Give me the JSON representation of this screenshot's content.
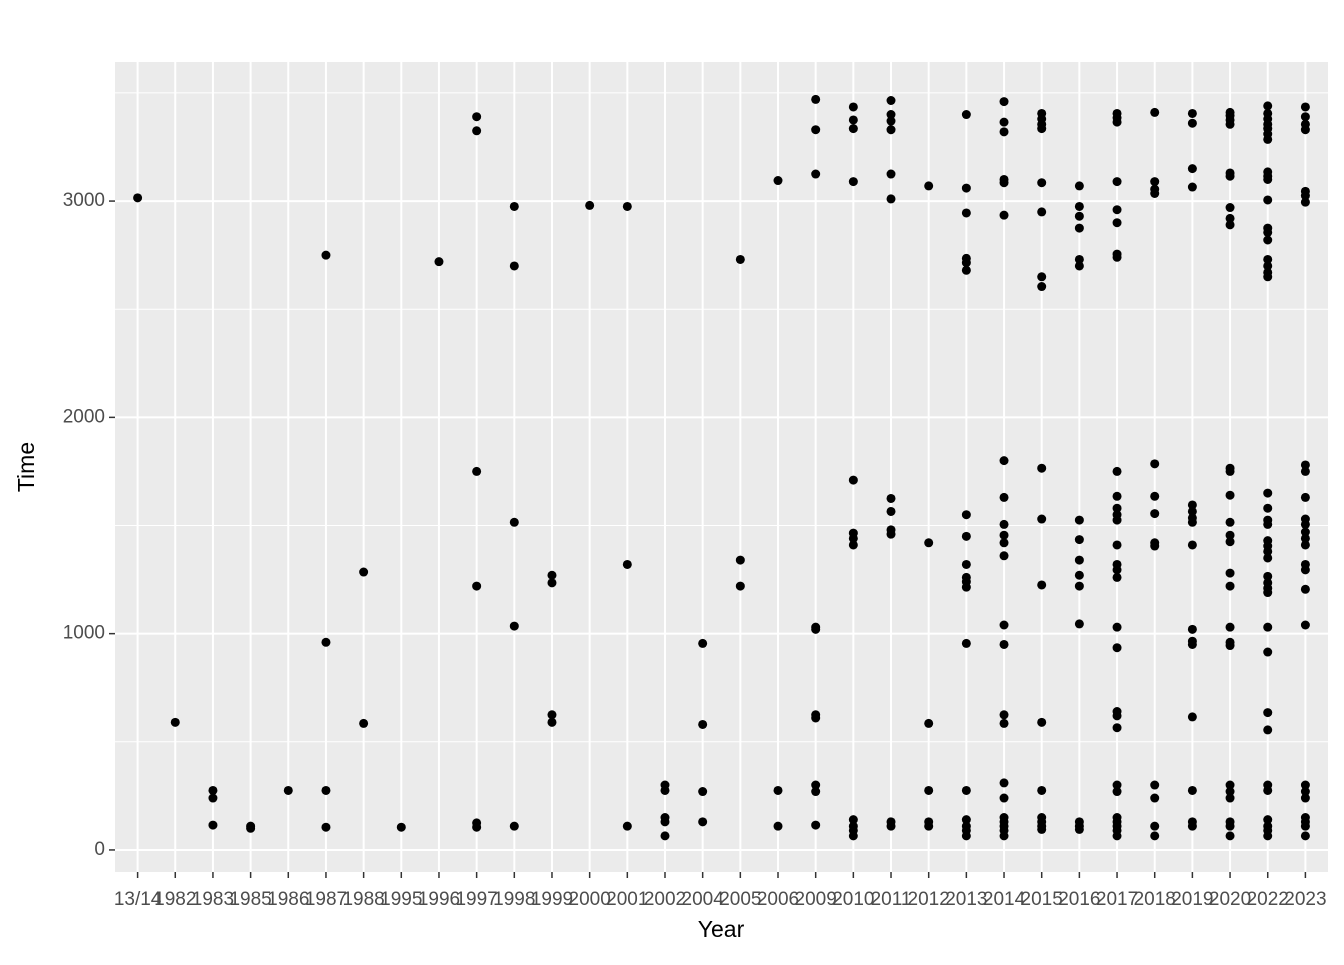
{
  "chart_data": {
    "type": "scatter",
    "x_label": "Year",
    "y_label": "Time",
    "color": "#000000",
    "grid": true,
    "categories": [
      "13/14",
      "1982",
      "1983",
      "1985",
      "1986",
      "1987",
      "1988",
      "1995",
      "1996",
      "1997",
      "1998",
      "1999",
      "2000",
      "2001",
      "2002",
      "2004",
      "2005",
      "2006",
      "2009",
      "2010",
      "2011",
      "2012",
      "2013",
      "2014",
      "2015",
      "2016",
      "2017",
      "2018",
      "2019",
      "2020",
      "2022",
      "2023"
    ],
    "values": [
      [
        3015
      ],
      [
        590
      ],
      [
        275,
        240,
        115
      ],
      [
        110,
        100
      ],
      [
        275
      ],
      [
        2750,
        960,
        275,
        105
      ],
      [
        1285,
        585
      ],
      [
        105
      ],
      [
        2720
      ],
      [
        3390,
        3325,
        1750,
        1220,
        125,
        105
      ],
      [
        2975,
        2700,
        1515,
        1035,
        110
      ],
      [
        1270,
        1235,
        625,
        590
      ],
      [
        2980
      ],
      [
        2975,
        1320,
        110
      ],
      [
        300,
        275,
        150,
        130,
        65
      ],
      [
        955,
        580,
        270,
        130
      ],
      [
        2730,
        1340,
        1220
      ],
      [
        3095,
        275,
        110
      ],
      [
        3470,
        3330,
        3125,
        1030,
        1020,
        625,
        610,
        300,
        270,
        115
      ],
      [
        3435,
        3375,
        3335,
        3090,
        1710,
        1465,
        1440,
        1410,
        140,
        110,
        90,
        65
      ],
      [
        3465,
        3400,
        3370,
        3330,
        3125,
        3010,
        1625,
        1565,
        1480,
        1460,
        130,
        110
      ],
      [
        3070,
        1420,
        585,
        275,
        130,
        110
      ],
      [
        3400,
        3060,
        2945,
        2735,
        2715,
        2680,
        1550,
        1450,
        1320,
        1260,
        1240,
        1215,
        955,
        275,
        140,
        110,
        90,
        65
      ],
      [
        3460,
        3365,
        3320,
        3100,
        3085,
        2935,
        1800,
        1630,
        1505,
        1455,
        1420,
        1360,
        1040,
        950,
        625,
        585,
        310,
        240,
        150,
        130,
        110,
        90,
        65
      ],
      [
        3405,
        3380,
        3355,
        3335,
        3085,
        2950,
        2650,
        2605,
        1765,
        1530,
        1225,
        590,
        275,
        150,
        130,
        110,
        95
      ],
      [
        3070,
        2975,
        2930,
        2875,
        2730,
        2700,
        1525,
        1435,
        1340,
        1270,
        1220,
        1045,
        130,
        110,
        95
      ],
      [
        3405,
        3385,
        3365,
        3090,
        2960,
        2900,
        2755,
        2740,
        1750,
        1635,
        1580,
        1550,
        1525,
        1410,
        1320,
        1295,
        1260,
        1030,
        935,
        640,
        620,
        565,
        300,
        270,
        150,
        130,
        110,
        90,
        65
      ],
      [
        3410,
        3090,
        3055,
        3035,
        1785,
        1635,
        1555,
        1420,
        1405,
        300,
        240,
        110,
        65
      ],
      [
        3405,
        3360,
        3150,
        3065,
        1595,
        1565,
        1535,
        1515,
        1410,
        1020,
        965,
        950,
        615,
        275,
        130,
        110
      ],
      [
        3410,
        3395,
        3375,
        3355,
        3130,
        3115,
        2970,
        2920,
        2890,
        1765,
        1750,
        1640,
        1515,
        1455,
        1425,
        1280,
        1220,
        1030,
        960,
        945,
        300,
        270,
        240,
        130,
        110,
        65
      ],
      [
        3440,
        3405,
        3380,
        3355,
        3335,
        3310,
        3285,
        3135,
        3115,
        3100,
        3005,
        2875,
        2855,
        2820,
        2730,
        2700,
        2670,
        2650,
        1650,
        1580,
        1525,
        1505,
        1430,
        1405,
        1380,
        1350,
        1265,
        1235,
        1210,
        1190,
        1030,
        915,
        635,
        555,
        300,
        275,
        140,
        110,
        90,
        65
      ],
      [
        3435,
        3390,
        3355,
        3330,
        3045,
        3025,
        2995,
        1780,
        1750,
        1630,
        1530,
        1505,
        1470,
        1440,
        1410,
        1320,
        1295,
        1205,
        1040,
        300,
        270,
        240,
        150,
        130,
        110,
        65
      ]
    ],
    "ylim": [
      -102,
      3643
    ],
    "yticks": [
      0,
      1000,
      2000,
      3000
    ],
    "y_minor_ticks": [
      500,
      1500,
      2500,
      3500
    ]
  }
}
